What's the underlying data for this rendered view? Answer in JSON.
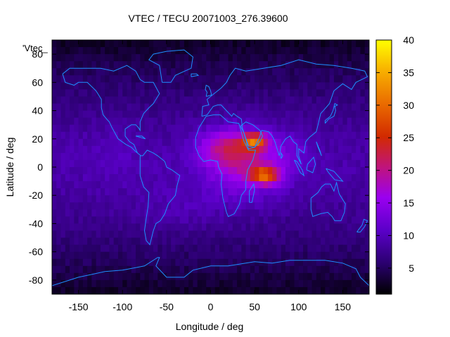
{
  "chart_data": {
    "type": "heatmap",
    "title": "VTEC / TECU 20071003_276.39600",
    "xlabel": "Longitude / deg",
    "ylabel": "Latitude / deg",
    "key_label": "'Vtec_",
    "xlim": [
      -180,
      180
    ],
    "ylim": [
      -90,
      90
    ],
    "x_ticks": [
      -150,
      -100,
      -50,
      0,
      50,
      100,
      150
    ],
    "y_ticks": [
      -80,
      -60,
      -40,
      -20,
      0,
      20,
      40,
      60,
      80
    ],
    "colorbar": {
      "min": 1,
      "max": 40,
      "ticks": [
        5,
        10,
        15,
        20,
        25,
        30,
        35,
        40
      ]
    },
    "background_level": 9,
    "hotspots": [
      {
        "lon": 50,
        "lat": 18,
        "peak": 38,
        "sx": 14,
        "sy": 6
      },
      {
        "lon": 62,
        "lat": -6,
        "peak": 39,
        "sx": 16,
        "sy": 6
      },
      {
        "lon": 40,
        "lat": 4,
        "peak": 26,
        "sx": 45,
        "sy": 22
      },
      {
        "lon": 15,
        "lat": 15,
        "peak": 22,
        "sx": 30,
        "sy": 12
      },
      {
        "lon": 95,
        "lat": 12,
        "peak": 12,
        "sx": 20,
        "sy": 12
      }
    ],
    "coastlines": [
      {
        "name": "north-america",
        "points": [
          [
            -168,
            66
          ],
          [
            -160,
            70
          ],
          [
            -140,
            70
          ],
          [
            -125,
            70
          ],
          [
            -110,
            68
          ],
          [
            -95,
            72
          ],
          [
            -85,
            68
          ],
          [
            -80,
            62
          ],
          [
            -75,
            60
          ],
          [
            -65,
            60
          ],
          [
            -58,
            52
          ],
          [
            -65,
            45
          ],
          [
            -70,
            42
          ],
          [
            -76,
            38
          ],
          [
            -80,
            32
          ],
          [
            -80,
            26
          ],
          [
            -82,
            28
          ],
          [
            -85,
            30
          ],
          [
            -90,
            30
          ],
          [
            -97,
            27
          ],
          [
            -97,
            22
          ],
          [
            -92,
            18
          ],
          [
            -87,
            16
          ],
          [
            -83,
            10
          ],
          [
            -79,
            8
          ],
          [
            -85,
            11
          ],
          [
            -90,
            14
          ],
          [
            -96,
            16
          ],
          [
            -105,
            20
          ],
          [
            -112,
            28
          ],
          [
            -115,
            32
          ],
          [
            -118,
            34
          ],
          [
            -122,
            37
          ],
          [
            -124,
            42
          ],
          [
            -124,
            48
          ],
          [
            -130,
            54
          ],
          [
            -140,
            60
          ],
          [
            -150,
            60
          ],
          [
            -155,
            58
          ],
          [
            -165,
            60
          ],
          [
            -168,
            66
          ]
        ]
      },
      {
        "name": "south-america",
        "points": [
          [
            -80,
            8
          ],
          [
            -77,
            8
          ],
          [
            -72,
            12
          ],
          [
            -65,
            10
          ],
          [
            -60,
            8
          ],
          [
            -52,
            4
          ],
          [
            -50,
            0
          ],
          [
            -44,
            -2
          ],
          [
            -35,
            -6
          ],
          [
            -38,
            -13
          ],
          [
            -40,
            -20
          ],
          [
            -44,
            -23
          ],
          [
            -48,
            -26
          ],
          [
            -52,
            -33
          ],
          [
            -57,
            -38
          ],
          [
            -62,
            -40
          ],
          [
            -65,
            -45
          ],
          [
            -67,
            -50
          ],
          [
            -69,
            -55
          ],
          [
            -73,
            -52
          ],
          [
            -75,
            -45
          ],
          [
            -73,
            -36
          ],
          [
            -71,
            -28
          ],
          [
            -70,
            -18
          ],
          [
            -76,
            -14
          ],
          [
            -80,
            -6
          ],
          [
            -80,
            0
          ],
          [
            -80,
            8
          ]
        ]
      },
      {
        "name": "africa",
        "points": [
          [
            -17,
            21
          ],
          [
            -13,
            28
          ],
          [
            -9,
            32
          ],
          [
            -5,
            36
          ],
          [
            3,
            37
          ],
          [
            11,
            37
          ],
          [
            20,
            32
          ],
          [
            32,
            31
          ],
          [
            34,
            27
          ],
          [
            38,
            18
          ],
          [
            43,
            12
          ],
          [
            51,
            12
          ],
          [
            48,
            5
          ],
          [
            42,
            -2
          ],
          [
            40,
            -10
          ],
          [
            40,
            -16
          ],
          [
            35,
            -20
          ],
          [
            33,
            -26
          ],
          [
            27,
            -33
          ],
          [
            20,
            -35
          ],
          [
            18,
            -32
          ],
          [
            14,
            -22
          ],
          [
            12,
            -12
          ],
          [
            13,
            -5
          ],
          [
            9,
            0
          ],
          [
            8,
            4
          ],
          [
            0,
            5
          ],
          [
            -8,
            4
          ],
          [
            -13,
            8
          ],
          [
            -17,
            14
          ],
          [
            -17,
            21
          ]
        ]
      },
      {
        "name": "eurasia",
        "points": [
          [
            -10,
            36
          ],
          [
            -9,
            43
          ],
          [
            -2,
            44
          ],
          [
            -4,
            48
          ],
          [
            2,
            51
          ],
          [
            8,
            54
          ],
          [
            12,
            56
          ],
          [
            18,
            60
          ],
          [
            22,
            65
          ],
          [
            28,
            70
          ],
          [
            40,
            68
          ],
          [
            60,
            70
          ],
          [
            80,
            72
          ],
          [
            100,
            76
          ],
          [
            120,
            73
          ],
          [
            140,
            72
          ],
          [
            160,
            70
          ],
          [
            175,
            68
          ],
          [
            178,
            64
          ],
          [
            165,
            60
          ],
          [
            160,
            55
          ],
          [
            150,
            59
          ],
          [
            140,
            54
          ],
          [
            135,
            45
          ],
          [
            128,
            40
          ],
          [
            125,
            38
          ],
          [
            122,
            30
          ],
          [
            120,
            25
          ],
          [
            112,
            21
          ],
          [
            108,
            18
          ],
          [
            106,
            10
          ],
          [
            100,
            13
          ],
          [
            100,
            8
          ],
          [
            103,
            2
          ],
          [
            98,
            8
          ],
          [
            98,
            16
          ],
          [
            94,
            18
          ],
          [
            90,
            22
          ],
          [
            85,
            20
          ],
          [
            80,
            15
          ],
          [
            78,
            8
          ],
          [
            73,
            18
          ],
          [
            70,
            22
          ],
          [
            66,
            25
          ],
          [
            58,
            26
          ],
          [
            56,
            22
          ],
          [
            50,
            14
          ],
          [
            43,
            13
          ],
          [
            36,
            28
          ],
          [
            35,
            34
          ],
          [
            30,
            36
          ],
          [
            26,
            38
          ],
          [
            24,
            36
          ],
          [
            18,
            40
          ],
          [
            12,
            44
          ],
          [
            8,
            44
          ],
          [
            3,
            43
          ],
          [
            -4,
            37
          ],
          [
            -10,
            36
          ]
        ]
      },
      {
        "name": "arabia",
        "points": [
          [
            34,
            29
          ],
          [
            38,
            24
          ],
          [
            43,
            15
          ],
          [
            50,
            14
          ],
          [
            56,
            18
          ],
          [
            59,
            22
          ],
          [
            56,
            26
          ],
          [
            50,
            29
          ],
          [
            48,
            30
          ],
          [
            40,
            32
          ],
          [
            34,
            29
          ]
        ]
      },
      {
        "name": "australia",
        "points": [
          [
            114,
            -22
          ],
          [
            114,
            -30
          ],
          [
            116,
            -35
          ],
          [
            125,
            -33
          ],
          [
            133,
            -32
          ],
          [
            138,
            -35
          ],
          [
            141,
            -38
          ],
          [
            148,
            -38
          ],
          [
            152,
            -32
          ],
          [
            153,
            -26
          ],
          [
            146,
            -19
          ],
          [
            143,
            -11
          ],
          [
            140,
            -17
          ],
          [
            136,
            -12
          ],
          [
            130,
            -12
          ],
          [
            126,
            -14
          ],
          [
            122,
            -18
          ],
          [
            114,
            -22
          ]
        ]
      },
      {
        "name": "greenland",
        "points": [
          [
            -55,
            60
          ],
          [
            -45,
            60
          ],
          [
            -40,
            65
          ],
          [
            -22,
            70
          ],
          [
            -20,
            78
          ],
          [
            -30,
            83
          ],
          [
            -50,
            82
          ],
          [
            -65,
            80
          ],
          [
            -70,
            76
          ],
          [
            -58,
            72
          ],
          [
            -55,
            60
          ]
        ]
      },
      {
        "name": "madagascar",
        "points": [
          [
            44,
            -25
          ],
          [
            47,
            -25
          ],
          [
            50,
            -16
          ],
          [
            49,
            -12
          ],
          [
            44,
            -17
          ],
          [
            44,
            -25
          ]
        ]
      },
      {
        "name": "uk",
        "points": [
          [
            -5,
            50
          ],
          [
            1,
            51
          ],
          [
            0,
            54
          ],
          [
            -2,
            57
          ],
          [
            -5,
            58
          ],
          [
            -6,
            55
          ],
          [
            -4,
            53
          ],
          [
            -5,
            50
          ]
        ]
      },
      {
        "name": "japan",
        "points": [
          [
            130,
            31
          ],
          [
            134,
            34
          ],
          [
            140,
            36
          ],
          [
            142,
            40
          ],
          [
            141,
            43
          ],
          [
            144,
            44
          ],
          [
            141,
            45
          ],
          [
            139,
            40
          ],
          [
            136,
            36
          ],
          [
            130,
            33
          ],
          [
            130,
            31
          ]
        ]
      },
      {
        "name": "new-zealand",
        "points": [
          [
            166,
            -46
          ],
          [
            172,
            -41
          ],
          [
            174,
            -37
          ],
          [
            178,
            -38
          ],
          [
            175,
            -42
          ],
          [
            170,
            -46
          ],
          [
            166,
            -46
          ]
        ]
      },
      {
        "name": "borneo",
        "points": [
          [
            109,
            -2
          ],
          [
            110,
            2
          ],
          [
            117,
            7
          ],
          [
            119,
            2
          ],
          [
            116,
            -4
          ],
          [
            109,
            -2
          ]
        ]
      },
      {
        "name": "sumatra",
        "points": [
          [
            95,
            5
          ],
          [
            98,
            4
          ],
          [
            104,
            -2
          ],
          [
            106,
            -6
          ],
          [
            102,
            -4
          ],
          [
            95,
            5
          ]
        ]
      },
      {
        "name": "new-guinea",
        "points": [
          [
            131,
            -1
          ],
          [
            140,
            -3
          ],
          [
            150,
            -10
          ],
          [
            141,
            -9
          ],
          [
            134,
            -4
          ],
          [
            131,
            -1
          ]
        ]
      },
      {
        "name": "antarctica",
        "points": [
          [
            -180,
            -84
          ],
          [
            -150,
            -78
          ],
          [
            -120,
            -74
          ],
          [
            -100,
            -73
          ],
          [
            -75,
            -70
          ],
          [
            -60,
            -64
          ],
          [
            -58,
            -64
          ],
          [
            -62,
            -70
          ],
          [
            -50,
            -78
          ],
          [
            -30,
            -78
          ],
          [
            -20,
            -73
          ],
          [
            0,
            -70
          ],
          [
            20,
            -70
          ],
          [
            50,
            -67
          ],
          [
            70,
            -68
          ],
          [
            90,
            -66
          ],
          [
            110,
            -66
          ],
          [
            130,
            -66
          ],
          [
            150,
            -68
          ],
          [
            165,
            -72
          ],
          [
            170,
            -78
          ],
          [
            180,
            -84
          ]
        ]
      },
      {
        "name": "iceland",
        "points": [
          [
            -22,
            64
          ],
          [
            -14,
            65
          ],
          [
            -16,
            66
          ],
          [
            -22,
            66
          ],
          [
            -22,
            64
          ]
        ]
      },
      {
        "name": "cuba",
        "points": [
          [
            -85,
            22
          ],
          [
            -74,
            20
          ],
          [
            -78,
            22
          ],
          [
            -85,
            22
          ]
        ]
      },
      {
        "name": "sri-lanka",
        "points": [
          [
            80,
            6
          ],
          [
            82,
            8
          ],
          [
            80,
            10
          ],
          [
            80,
            6
          ]
        ]
      },
      {
        "name": "philippines",
        "points": [
          [
            120,
            18
          ],
          [
            122,
            14
          ],
          [
            126,
            8
          ],
          [
            124,
            12
          ],
          [
            120,
            18
          ]
        ]
      }
    ]
  }
}
